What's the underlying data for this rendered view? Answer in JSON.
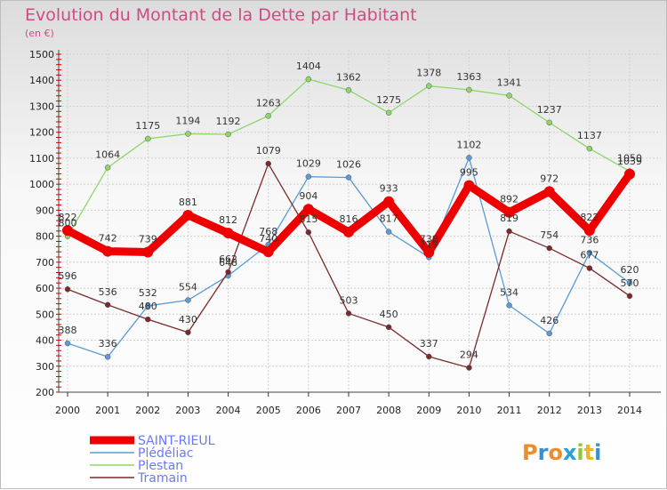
{
  "chart_data": {
    "type": "line",
    "title": "Evolution du Montant de la Dette par Habitant",
    "subtitle": "(en €)",
    "x": [
      "2000",
      "2001",
      "2002",
      "2003",
      "2004",
      "2005",
      "2006",
      "2007",
      "2008",
      "2009",
      "2010",
      "2011",
      "2012",
      "2013",
      "2014"
    ],
    "ylim": [
      200,
      1500
    ],
    "yticks": [
      200,
      300,
      400,
      500,
      600,
      700,
      800,
      900,
      1000,
      1100,
      1200,
      1300,
      1400,
      1500
    ],
    "grid": true,
    "legend_position": "bottom-left",
    "series": [
      {
        "name": "Plestan",
        "color": "#8ed66a",
        "values": [
          800,
          1064,
          1175,
          1194,
          1192,
          1263,
          1404,
          1362,
          1275,
          1378,
          1363,
          1341,
          1237,
          1137,
          1050
        ]
      },
      {
        "name": "Plédéliac",
        "color": "#5b9bd5",
        "values": [
          388,
          336,
          532,
          554,
          648,
          768,
          1029,
          1026,
          817,
          719,
          1102,
          534,
          426,
          736,
          620
        ]
      },
      {
        "name": "Tramain",
        "color": "#7a2a2a",
        "values": [
          596,
          536,
          480,
          430,
          662,
          1079,
          815,
          503,
          450,
          337,
          294,
          819,
          754,
          677,
          570
        ]
      },
      {
        "name": "SAINT-RIEUL",
        "color": "#ee0000",
        "values": [
          822,
          742,
          739,
          881,
          812,
          740,
          904,
          816,
          933,
          738,
          995,
          892,
          972,
          822,
          1039
        ]
      }
    ],
    "legend_order": [
      "SAINT-RIEUL",
      "Plédéliac",
      "Plestan",
      "Tramain"
    ]
  },
  "logo": {
    "text": "Proxiti"
  }
}
